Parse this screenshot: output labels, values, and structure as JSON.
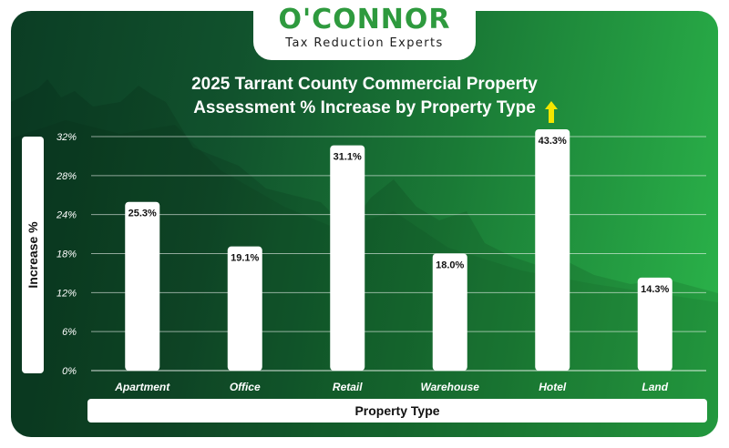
{
  "logo": {
    "name": "O'CONNOR",
    "tagline": "Tax Reduction Experts"
  },
  "colors": {
    "brand_green": "#2e9a3e",
    "bar": "#ffffff",
    "arrow": "#f2e600"
  },
  "chart_data": {
    "type": "bar",
    "title_line1": "2025 Tarrant County Commercial Property",
    "title_line2": "Assessment % Increase by Property Type",
    "xlabel": "Property Type",
    "ylabel": "Increase %",
    "y_ticks": [
      "0%",
      "6%",
      "12%",
      "18%",
      "24%",
      "28%",
      "32%"
    ],
    "categories": [
      "Apartment",
      "Office",
      "Retail",
      "Warehouse",
      "Hotel",
      "Land"
    ],
    "values": [
      25.3,
      19.1,
      31.1,
      18.0,
      43.3,
      14.3
    ],
    "value_labels": [
      "25.3%",
      "19.1%",
      "31.1%",
      "18.0%",
      "43.3%",
      "14.3%"
    ],
    "grid": true,
    "legend": "none"
  }
}
